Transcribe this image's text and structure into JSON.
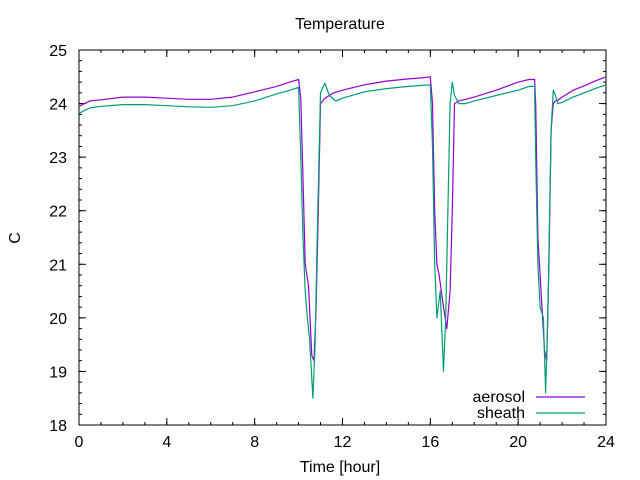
{
  "chart_data": {
    "type": "line",
    "title": "Temperature",
    "xlabel": "Time [hour]",
    "ylabel": "C",
    "xlim": [
      0,
      24
    ],
    "ylim": [
      18,
      25
    ],
    "xticks": [
      0,
      4,
      8,
      12,
      16,
      20,
      24
    ],
    "yticks": [
      18,
      19,
      20,
      21,
      22,
      23,
      24,
      25
    ],
    "xtick_labels": [
      "0",
      "4",
      "8",
      "12",
      "16",
      "20",
      "24"
    ],
    "ytick_labels": [
      "18",
      "19",
      "20",
      "21",
      "22",
      "23",
      "24",
      "25"
    ],
    "grid": false,
    "legend_position": "bottom-right",
    "series": [
      {
        "name": "aerosol",
        "color": "#9400d3",
        "x": [
          0,
          0.5,
          1,
          2,
          3,
          4,
          5,
          6,
          7,
          8,
          9,
          9.6,
          10.0,
          10.1,
          10.2,
          10.3,
          10.45,
          10.6,
          10.7,
          10.8,
          10.9,
          11.0,
          11.2,
          11.6,
          12,
          13,
          14,
          15,
          15.6,
          16.0,
          16.1,
          16.2,
          16.3,
          16.4,
          16.6,
          16.75,
          16.9,
          17.0,
          17.1,
          17.3,
          17.6,
          18,
          19,
          20,
          20.5,
          20.75,
          20.8,
          20.9,
          21.0,
          21.1,
          21.2,
          21.3,
          21.4,
          21.5,
          21.6,
          21.7,
          21.8,
          22,
          22.5,
          23,
          23.5,
          24
        ],
        "y": [
          23.95,
          24.05,
          24.07,
          24.12,
          24.12,
          24.1,
          24.08,
          24.08,
          24.12,
          24.22,
          24.32,
          24.4,
          24.45,
          24.1,
          22.6,
          21.0,
          20.6,
          19.3,
          19.2,
          20.2,
          22.0,
          24.0,
          24.1,
          24.2,
          24.25,
          24.35,
          24.42,
          24.46,
          24.48,
          24.5,
          24.0,
          22.0,
          21.0,
          20.8,
          20.2,
          19.8,
          20.5,
          22.0,
          24.0,
          24.05,
          24.08,
          24.12,
          24.25,
          24.4,
          24.45,
          24.45,
          24.0,
          21.5,
          20.8,
          20.1,
          19.4,
          19.2,
          21.0,
          23.5,
          24.0,
          24.05,
          24.06,
          24.12,
          24.25,
          24.33,
          24.42,
          24.5
        ]
      },
      {
        "name": "sheath",
        "color": "#009e73",
        "x": [
          0,
          0.5,
          1,
          2,
          3,
          4,
          5,
          6,
          7,
          8,
          9,
          9.6,
          10.0,
          10.1,
          10.2,
          10.3,
          10.4,
          10.5,
          10.65,
          10.75,
          10.85,
          11.0,
          11.2,
          11.4,
          11.7,
          12,
          13,
          14,
          15,
          15.6,
          16.0,
          16.1,
          16.2,
          16.3,
          16.45,
          16.6,
          16.7,
          16.8,
          16.9,
          17.0,
          17.1,
          17.3,
          17.6,
          18,
          19,
          20,
          20.5,
          20.75,
          20.8,
          20.9,
          21.0,
          21.15,
          21.25,
          21.35,
          21.5,
          21.6,
          21.7,
          21.8,
          22,
          22.5,
          23,
          23.5,
          24
        ],
        "y": [
          23.82,
          23.92,
          23.95,
          23.98,
          23.98,
          23.96,
          23.94,
          23.93,
          23.96,
          24.05,
          24.18,
          24.25,
          24.3,
          23.0,
          21.5,
          20.5,
          20.0,
          19.6,
          18.5,
          19.5,
          21.5,
          24.2,
          24.38,
          24.15,
          24.05,
          24.1,
          24.22,
          24.28,
          24.32,
          24.34,
          24.35,
          23.2,
          21.0,
          20.0,
          20.5,
          19.0,
          20.0,
          22.0,
          24.0,
          24.4,
          24.15,
          24.0,
          24.0,
          24.05,
          24.15,
          24.25,
          24.32,
          24.32,
          23.0,
          21.0,
          20.2,
          20.0,
          18.6,
          20.0,
          23.5,
          24.25,
          24.15,
          24.0,
          24.02,
          24.12,
          24.2,
          24.28,
          24.35
        ]
      }
    ]
  }
}
